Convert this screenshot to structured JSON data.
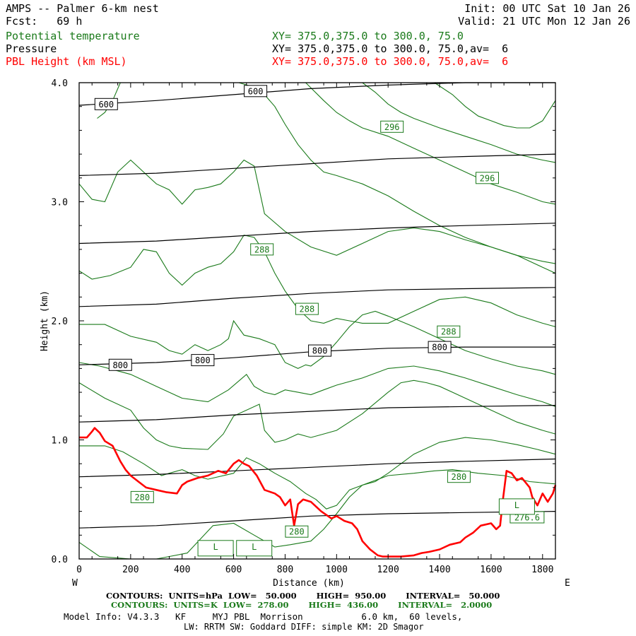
{
  "header": {
    "title": "AMPS -- Palmer 6-km nest",
    "fcst": "Fcst:   69 h",
    "init": "Init: 00 UTC Sat 10 Jan 26",
    "valid": "Valid: 21 UTC Mon 12 Jan 26"
  },
  "legend": [
    {
      "name": "Potential temperature",
      "xy": "XY= 375.0,375.0 to 300.0, 75.0",
      "color": "#1a7a1a"
    },
    {
      "name": "Pressure",
      "xy": "XY= 375.0,375.0 to 300.0, 75.0,av=  6",
      "color": "#000000"
    },
    {
      "name": "PBL Height (km MSL)",
      "xy": "XY= 375.0,375.0 to 300.0, 75.0,av=  6",
      "color": "#ff0000"
    }
  ],
  "footer": {
    "contours_p": "CONTOURS:  UNITS=hPa  LOW=   50.000       HIGH=  950.00       INTERVAL=   50.000",
    "contours_t": "CONTOURS:  UNITS=K  LOW=  278.00       HIGH=  436.00       INTERVAL=   2.0000",
    "model_info": "Model Info: V4.3.3   KF     MYJ PBL  Morrison           6.0 km,  60 levels,",
    "model_info2": "LW: RRTM SW: Goddard DIFF: simple KM: 2D Smagor"
  },
  "chart_data": {
    "type": "line",
    "title": "AMPS -- Palmer 6-km nest",
    "xlabel": "Distance (km)",
    "ylabel": "Height (km)",
    "xlim": [
      0,
      1850
    ],
    "ylim": [
      0,
      4.0
    ],
    "x_ticks": [
      0,
      200,
      400,
      600,
      800,
      1000,
      1200,
      1400,
      1600,
      1800
    ],
    "y_ticks": [
      0.0,
      1.0,
      2.0,
      3.0,
      4.0
    ],
    "y_tick_labels": [
      "0.0",
      "1.0",
      "2.0",
      "3.0",
      "4.0"
    ],
    "x_end_labels": {
      "left": "W",
      "right": "E"
    },
    "pressure_hPa": [
      {
        "level": 950,
        "x": [
          0,
          300,
          600,
          900,
          1200,
          1500,
          1850
        ],
        "y": [
          0.26,
          0.28,
          0.32,
          0.36,
          0.38,
          0.39,
          0.4
        ]
      },
      {
        "level": 900,
        "x": [
          0,
          300,
          600,
          900,
          1200,
          1500,
          1850
        ],
        "y": [
          0.69,
          0.71,
          0.74,
          0.77,
          0.8,
          0.82,
          0.84
        ]
      },
      {
        "level": 850,
        "x": [
          0,
          300,
          600,
          900,
          1200,
          1500,
          1850
        ],
        "y": [
          1.15,
          1.17,
          1.21,
          1.24,
          1.27,
          1.28,
          1.29
        ]
      },
      {
        "level": 800,
        "x": [
          0,
          300,
          600,
          900,
          1200,
          1500,
          1850
        ],
        "y": [
          1.63,
          1.65,
          1.69,
          1.74,
          1.77,
          1.78,
          1.78
        ]
      },
      {
        "level": 750,
        "x": [
          0,
          300,
          600,
          900,
          1200,
          1500,
          1850
        ],
        "y": [
          2.12,
          2.14,
          2.19,
          2.23,
          2.26,
          2.27,
          2.28
        ]
      },
      {
        "level": 700,
        "x": [
          0,
          300,
          600,
          900,
          1200,
          1500,
          1850
        ],
        "y": [
          2.65,
          2.67,
          2.71,
          2.75,
          2.78,
          2.8,
          2.82
        ]
      },
      {
        "level": 650,
        "x": [
          0,
          300,
          600,
          900,
          1200,
          1500,
          1850
        ],
        "y": [
          3.22,
          3.24,
          3.28,
          3.32,
          3.36,
          3.38,
          3.4
        ]
      },
      {
        "level": 600,
        "x": [
          0,
          300,
          600,
          900,
          1200,
          1500,
          1850
        ],
        "y": [
          3.81,
          3.85,
          3.9,
          3.95,
          3.98,
          4.0,
          4.0
        ]
      }
    ],
    "pressure_labels": [
      {
        "text": "600",
        "x": 105,
        "y": 3.82
      },
      {
        "text": "600",
        "x": 685,
        "y": 3.93
      },
      {
        "text": "800",
        "x": 160,
        "y": 1.63
      },
      {
        "text": "800",
        "x": 480,
        "y": 1.67
      },
      {
        "text": "800",
        "x": 935,
        "y": 1.75
      },
      {
        "text": "800",
        "x": 1400,
        "y": 1.78
      }
    ],
    "theta_K": [
      {
        "x": [
          0,
          80,
          200,
          300,
          420,
          520,
          600,
          680,
          760,
          820,
          900,
          950,
          1000,
          1050,
          1100,
          1200,
          1300,
          1380,
          1450,
          1550,
          1650,
          1750,
          1850
        ],
        "y": [
          0.14,
          0.02,
          0.0,
          0.0,
          0.05,
          0.28,
          0.3,
          0.2,
          0.1,
          0.12,
          0.15,
          0.25,
          0.38,
          0.52,
          0.62,
          0.7,
          0.72,
          0.74,
          0.75,
          0.72,
          0.7,
          0.65,
          0.63
        ]
      },
      {
        "x": [
          0,
          100,
          170,
          250,
          320,
          350,
          400,
          450,
          500,
          600,
          650,
          700,
          760,
          820,
          880,
          920,
          960,
          1000,
          1050,
          1100,
          1150,
          1200,
          1300,
          1400,
          1500,
          1600,
          1700,
          1780,
          1850
        ],
        "y": [
          0.95,
          0.95,
          0.9,
          0.8,
          0.7,
          0.72,
          0.75,
          0.7,
          0.67,
          0.72,
          0.85,
          0.8,
          0.72,
          0.65,
          0.55,
          0.5,
          0.42,
          0.45,
          0.58,
          0.62,
          0.65,
          0.72,
          0.88,
          0.98,
          1.02,
          1.0,
          0.96,
          0.92,
          0.88
        ]
      },
      {
        "x": [
          0,
          100,
          200,
          250,
          300,
          350,
          400,
          500,
          560,
          600,
          700,
          720,
          760,
          800,
          850,
          900,
          950,
          1000,
          1100,
          1200,
          1250,
          1300,
          1350,
          1400,
          1500,
          1600,
          1700,
          1800,
          1850
        ],
        "y": [
          1.48,
          1.35,
          1.25,
          1.1,
          1.0,
          0.95,
          0.93,
          0.92,
          1.05,
          1.2,
          1.3,
          1.08,
          0.98,
          1.0,
          1.05,
          1.02,
          1.05,
          1.08,
          1.22,
          1.4,
          1.48,
          1.5,
          1.48,
          1.45,
          1.35,
          1.25,
          1.15,
          1.08,
          1.05
        ]
      },
      {
        "x": [
          0,
          80,
          150,
          200,
          250,
          300,
          350,
          400,
          500,
          580,
          650,
          680,
          720,
          760,
          800,
          850,
          900,
          950,
          1000,
          1100,
          1200,
          1300,
          1400,
          1500,
          1600,
          1700,
          1800,
          1850
        ],
        "y": [
          1.65,
          1.62,
          1.58,
          1.55,
          1.5,
          1.45,
          1.4,
          1.35,
          1.32,
          1.42,
          1.55,
          1.45,
          1.4,
          1.38,
          1.42,
          1.4,
          1.38,
          1.42,
          1.46,
          1.52,
          1.6,
          1.62,
          1.58,
          1.52,
          1.45,
          1.38,
          1.32,
          1.28
        ]
      },
      {
        "x": [
          0,
          100,
          200,
          300,
          350,
          400,
          450,
          500,
          550,
          580,
          600,
          640,
          700,
          760,
          800,
          850,
          880,
          900,
          950,
          1000,
          1050,
          1100,
          1150,
          1200,
          1300,
          1400,
          1500,
          1600,
          1700,
          1800,
          1850
        ],
        "y": [
          1.97,
          1.97,
          1.87,
          1.82,
          1.75,
          1.72,
          1.8,
          1.75,
          1.8,
          1.85,
          2.0,
          1.88,
          1.85,
          1.8,
          1.65,
          1.6,
          1.63,
          1.62,
          1.7,
          1.82,
          1.95,
          2.05,
          2.08,
          2.04,
          1.95,
          1.85,
          1.75,
          1.68,
          1.62,
          1.58,
          1.55
        ]
      },
      {
        "x": [
          0,
          50,
          120,
          200,
          250,
          300,
          350,
          400,
          450,
          500,
          550,
          600,
          640,
          680,
          720,
          760,
          800,
          850,
          900,
          950,
          1000,
          1050,
          1100,
          1200,
          1300,
          1400,
          1500,
          1600,
          1700,
          1800,
          1850
        ],
        "y": [
          2.42,
          2.35,
          2.38,
          2.45,
          2.6,
          2.58,
          2.4,
          2.3,
          2.4,
          2.45,
          2.48,
          2.58,
          2.72,
          2.7,
          2.58,
          2.4,
          2.25,
          2.1,
          2.0,
          1.98,
          2.02,
          2.0,
          1.98,
          1.98,
          2.08,
          2.18,
          2.2,
          2.15,
          2.05,
          1.98,
          1.95
        ]
      },
      {
        "x": [
          0,
          50,
          100,
          150,
          200,
          250,
          300,
          350,
          400,
          450,
          500,
          550,
          600,
          640,
          680,
          720,
          800,
          900,
          1000,
          1100,
          1200,
          1300,
          1400,
          1500,
          1600,
          1700,
          1800,
          1850
        ],
        "y": [
          3.15,
          3.02,
          3.0,
          3.25,
          3.35,
          3.25,
          3.15,
          3.1,
          2.98,
          3.1,
          3.12,
          3.15,
          3.25,
          3.35,
          3.3,
          2.9,
          2.75,
          2.62,
          2.55,
          2.65,
          2.75,
          2.78,
          2.75,
          2.68,
          2.62,
          2.55,
          2.45,
          2.4
        ]
      },
      {
        "x": [
          70,
          100,
          130,
          160
        ],
        "y": [
          3.7,
          3.75,
          3.85,
          4.0
        ]
      },
      {
        "x": [
          620,
          700,
          760,
          800,
          850,
          900,
          950,
          1000,
          1100,
          1200,
          1300,
          1400,
          1500,
          1600,
          1700,
          1800,
          1850
        ],
        "y": [
          4.0,
          3.95,
          3.8,
          3.65,
          3.48,
          3.35,
          3.25,
          3.22,
          3.15,
          3.05,
          2.92,
          2.8,
          2.7,
          2.62,
          2.55,
          2.5,
          2.48
        ]
      },
      {
        "x": [
          880,
          950,
          1000,
          1050,
          1100,
          1200,
          1300,
          1400,
          1500,
          1600,
          1700,
          1800,
          1850
        ],
        "y": [
          4.0,
          3.85,
          3.75,
          3.68,
          3.62,
          3.55,
          3.45,
          3.35,
          3.25,
          3.15,
          3.08,
          3.0,
          2.98
        ]
      },
      {
        "x": [
          1100,
          1150,
          1200,
          1250,
          1300,
          1400,
          1500,
          1600,
          1700,
          1800,
          1850
        ],
        "y": [
          4.0,
          3.92,
          3.82,
          3.75,
          3.7,
          3.62,
          3.55,
          3.48,
          3.4,
          3.35,
          3.33
        ]
      },
      {
        "x": [
          1380,
          1450,
          1500,
          1550,
          1600,
          1650,
          1700,
          1750,
          1800,
          1850
        ],
        "y": [
          4.0,
          3.9,
          3.8,
          3.72,
          3.68,
          3.64,
          3.62,
          3.62,
          3.68,
          3.85
        ]
      }
    ],
    "theta_labels": [
      {
        "text": "296",
        "x": 1215,
        "y": 3.63
      },
      {
        "text": "296",
        "x": 1585,
        "y": 3.2
      },
      {
        "text": "288",
        "x": 710,
        "y": 2.6
      },
      {
        "text": "288",
        "x": 885,
        "y": 2.1
      },
      {
        "text": "288",
        "x": 1435,
        "y": 1.91
      },
      {
        "text": "280",
        "x": 245,
        "y": 0.52
      },
      {
        "text": "280",
        "x": 845,
        "y": 0.23
      },
      {
        "text": "280",
        "x": 1475,
        "y": 0.69
      },
      {
        "text": "276.6",
        "x": 1740,
        "y": 0.35
      }
    ],
    "low_markers": [
      {
        "text": "L",
        "x": 530,
        "y": 0.09
      },
      {
        "text": "L",
        "x": 680,
        "y": 0.09
      },
      {
        "text": "L",
        "x": 1700,
        "y": 0.44
      }
    ],
    "pbl_height_km": {
      "x": [
        0,
        30,
        50,
        60,
        80,
        100,
        130,
        160,
        180,
        200,
        230,
        260,
        300,
        340,
        380,
        400,
        420,
        460,
        500,
        540,
        570,
        600,
        620,
        640,
        660,
        690,
        720,
        760,
        780,
        800,
        820,
        835,
        850,
        870,
        900,
        940,
        980,
        1000,
        1030,
        1060,
        1080,
        1100,
        1130,
        1160,
        1180,
        1200,
        1250,
        1300,
        1330,
        1360,
        1400,
        1440,
        1480,
        1500,
        1530,
        1560,
        1600,
        1620,
        1635,
        1645,
        1660,
        1680,
        1700,
        1720,
        1750,
        1760,
        1780,
        1800,
        1820,
        1840,
        1850
      ],
      "y": [
        1.02,
        1.02,
        1.07,
        1.1,
        1.06,
        0.99,
        0.95,
        0.82,
        0.75,
        0.7,
        0.65,
        0.6,
        0.58,
        0.56,
        0.55,
        0.62,
        0.65,
        0.68,
        0.7,
        0.74,
        0.72,
        0.8,
        0.83,
        0.8,
        0.78,
        0.7,
        0.58,
        0.55,
        0.52,
        0.45,
        0.5,
        0.28,
        0.46,
        0.5,
        0.48,
        0.4,
        0.34,
        0.36,
        0.32,
        0.3,
        0.25,
        0.15,
        0.08,
        0.03,
        0.02,
        0.02,
        0.02,
        0.03,
        0.05,
        0.06,
        0.08,
        0.12,
        0.14,
        0.18,
        0.22,
        0.28,
        0.3,
        0.25,
        0.28,
        0.48,
        0.74,
        0.72,
        0.66,
        0.68,
        0.6,
        0.52,
        0.45,
        0.55,
        0.48,
        0.55,
        0.62
      ]
    }
  }
}
